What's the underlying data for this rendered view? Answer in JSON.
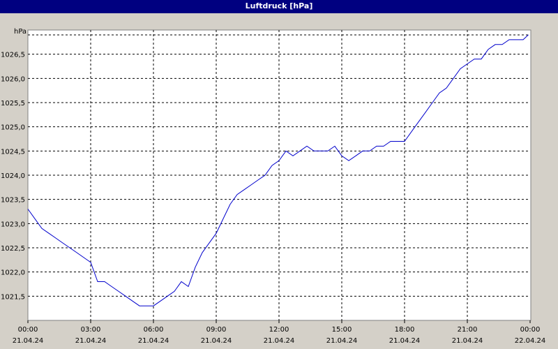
{
  "window": {
    "title": "Luftdruck [hPa]"
  },
  "chart_data": {
    "type": "line",
    "title": "Luftdruck [hPa]",
    "ylabel": "hPa",
    "xlabel": "",
    "ylim": [
      1021.0,
      1027.0
    ],
    "y_ticks": [
      "1026,5",
      "1026,0",
      "1025,5",
      "1025,0",
      "1024,5",
      "1024,0",
      "1023,5",
      "1023,0",
      "1022,5",
      "1022,0",
      "1021,5"
    ],
    "y_tick_values": [
      1026.5,
      1026.0,
      1025.5,
      1025.0,
      1024.5,
      1024.0,
      1023.5,
      1023.0,
      1022.5,
      1022.0,
      1021.5
    ],
    "x_ticks": [
      {
        "time": "00:00",
        "date": "21.04.24"
      },
      {
        "time": "03:00",
        "date": "21.04.24"
      },
      {
        "time": "06:00",
        "date": "21.04.24"
      },
      {
        "time": "09:00",
        "date": "21.04.24"
      },
      {
        "time": "12:00",
        "date": "21.04.24"
      },
      {
        "time": "15:00",
        "date": "21.04.24"
      },
      {
        "time": "18:00",
        "date": "21.04.24"
      },
      {
        "time": "21:00",
        "date": "21.04.24"
      },
      {
        "time": "00:00",
        "date": "22.04.24"
      }
    ],
    "grid": true,
    "line_color": "#0000cc",
    "series": [
      {
        "x": [
          "00:00",
          "00:20",
          "00:40",
          "01:00",
          "01:20",
          "01:40",
          "02:00",
          "02:20",
          "02:40",
          "03:00",
          "03:20",
          "03:40",
          "04:00",
          "04:20",
          "04:40",
          "05:00",
          "05:20",
          "05:40",
          "06:00",
          "06:20",
          "06:40",
          "07:00",
          "07:20",
          "07:40",
          "08:00",
          "08:20",
          "08:40",
          "09:00",
          "09:20",
          "09:40",
          "10:00",
          "10:20",
          "10:40",
          "11:00",
          "11:20",
          "11:40",
          "12:00",
          "12:20",
          "12:40",
          "13:00",
          "13:20",
          "13:40",
          "14:00",
          "14:20",
          "14:40",
          "15:00",
          "15:20",
          "15:40",
          "16:00",
          "16:20",
          "16:40",
          "17:00",
          "17:20",
          "17:40",
          "18:00",
          "18:20",
          "18:40",
          "19:00",
          "19:20",
          "19:40",
          "20:00",
          "20:20",
          "20:40",
          "21:00",
          "21:20",
          "21:40",
          "22:00",
          "22:20",
          "22:40",
          "23:00",
          "23:20",
          "23:40",
          "23:55"
        ],
        "values": [
          1023.3,
          1023.1,
          1022.9,
          1022.8,
          1022.7,
          1022.6,
          1022.5,
          1022.4,
          1022.3,
          1022.2,
          1021.8,
          1021.8,
          1021.7,
          1021.6,
          1021.5,
          1021.4,
          1021.3,
          1021.3,
          1021.3,
          1021.4,
          1021.5,
          1021.6,
          1021.8,
          1021.7,
          1022.1,
          1022.4,
          1022.6,
          1022.8,
          1023.1,
          1023.4,
          1023.6,
          1023.7,
          1023.8,
          1023.9,
          1024.0,
          1024.2,
          1024.3,
          1024.5,
          1024.4,
          1024.5,
          1024.6,
          1024.5,
          1024.5,
          1024.5,
          1024.6,
          1024.4,
          1024.3,
          1024.4,
          1024.5,
          1024.5,
          1024.6,
          1024.6,
          1024.7,
          1024.7,
          1024.7,
          1024.9,
          1025.1,
          1025.3,
          1025.5,
          1025.7,
          1025.8,
          1026.0,
          1026.2,
          1026.3,
          1026.4,
          1026.4,
          1026.6,
          1026.7,
          1026.7,
          1026.8,
          1026.8,
          1026.8,
          1026.9
        ]
      }
    ]
  }
}
